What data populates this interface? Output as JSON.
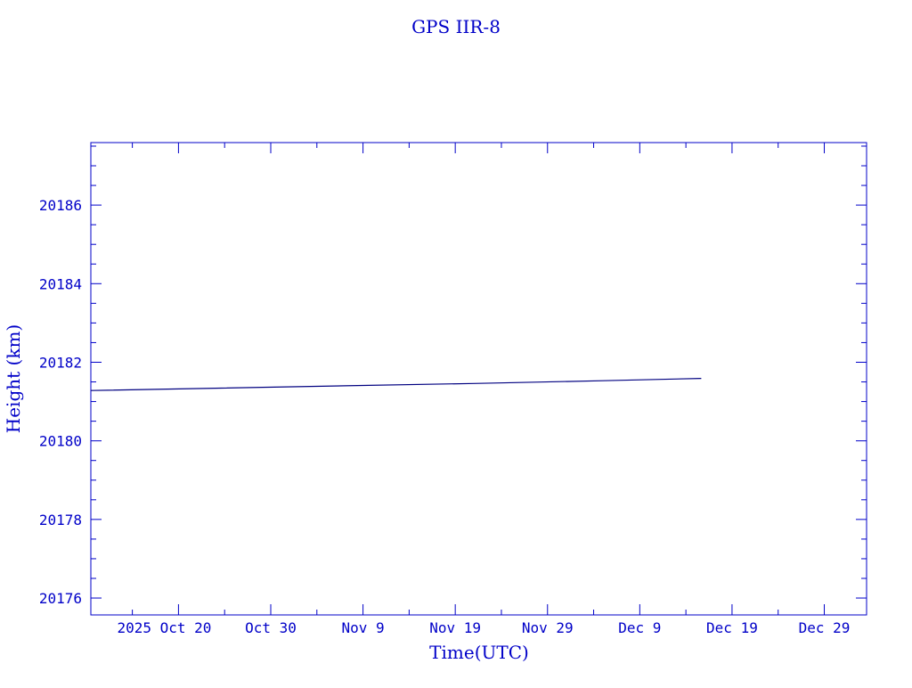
{
  "chart_data": {
    "type": "line",
    "title": "GPS IIR-8",
    "xlabel": "Time(UTC)",
    "ylabel": "Height (km)",
    "xlim": [
      "2025-10-10T12:00",
      "2026-01-02T14:00"
    ],
    "ylim": [
      20175.57,
      20187.59
    ],
    "x_ticks": [
      {
        "date": "2025-10-20",
        "label": "2025 Oct 20"
      },
      {
        "date": "2025-10-30",
        "label": "Oct 30"
      },
      {
        "date": "2025-11-09",
        "label": "Nov  9"
      },
      {
        "date": "2025-11-19",
        "label": "Nov 19"
      },
      {
        "date": "2025-11-29",
        "label": "Nov 29"
      },
      {
        "date": "2025-12-09",
        "label": "Dec  9"
      },
      {
        "date": "2025-12-19",
        "label": "Dec 19"
      },
      {
        "date": "2025-12-29",
        "label": "Dec 29"
      }
    ],
    "y_ticks": [
      20176,
      20178,
      20180,
      20182,
      20184,
      20186
    ],
    "grid": false,
    "series": [
      {
        "color": "#000080",
        "points": [
          {
            "x": "2025-10-10T12:00",
            "y": 20181.28
          },
          {
            "x": "2025-10-24T00:00",
            "y": 20181.34
          },
          {
            "x": "2025-11-07T00:00",
            "y": 20181.4
          },
          {
            "x": "2025-11-21T00:00",
            "y": 20181.46
          },
          {
            "x": "2025-12-05T00:00",
            "y": 20181.53
          },
          {
            "x": "2025-12-15T16:00",
            "y": 20181.59
          }
        ]
      }
    ],
    "colors": {
      "axis": "#0000c8",
      "text": "#0000c8",
      "line": "#000080"
    }
  }
}
